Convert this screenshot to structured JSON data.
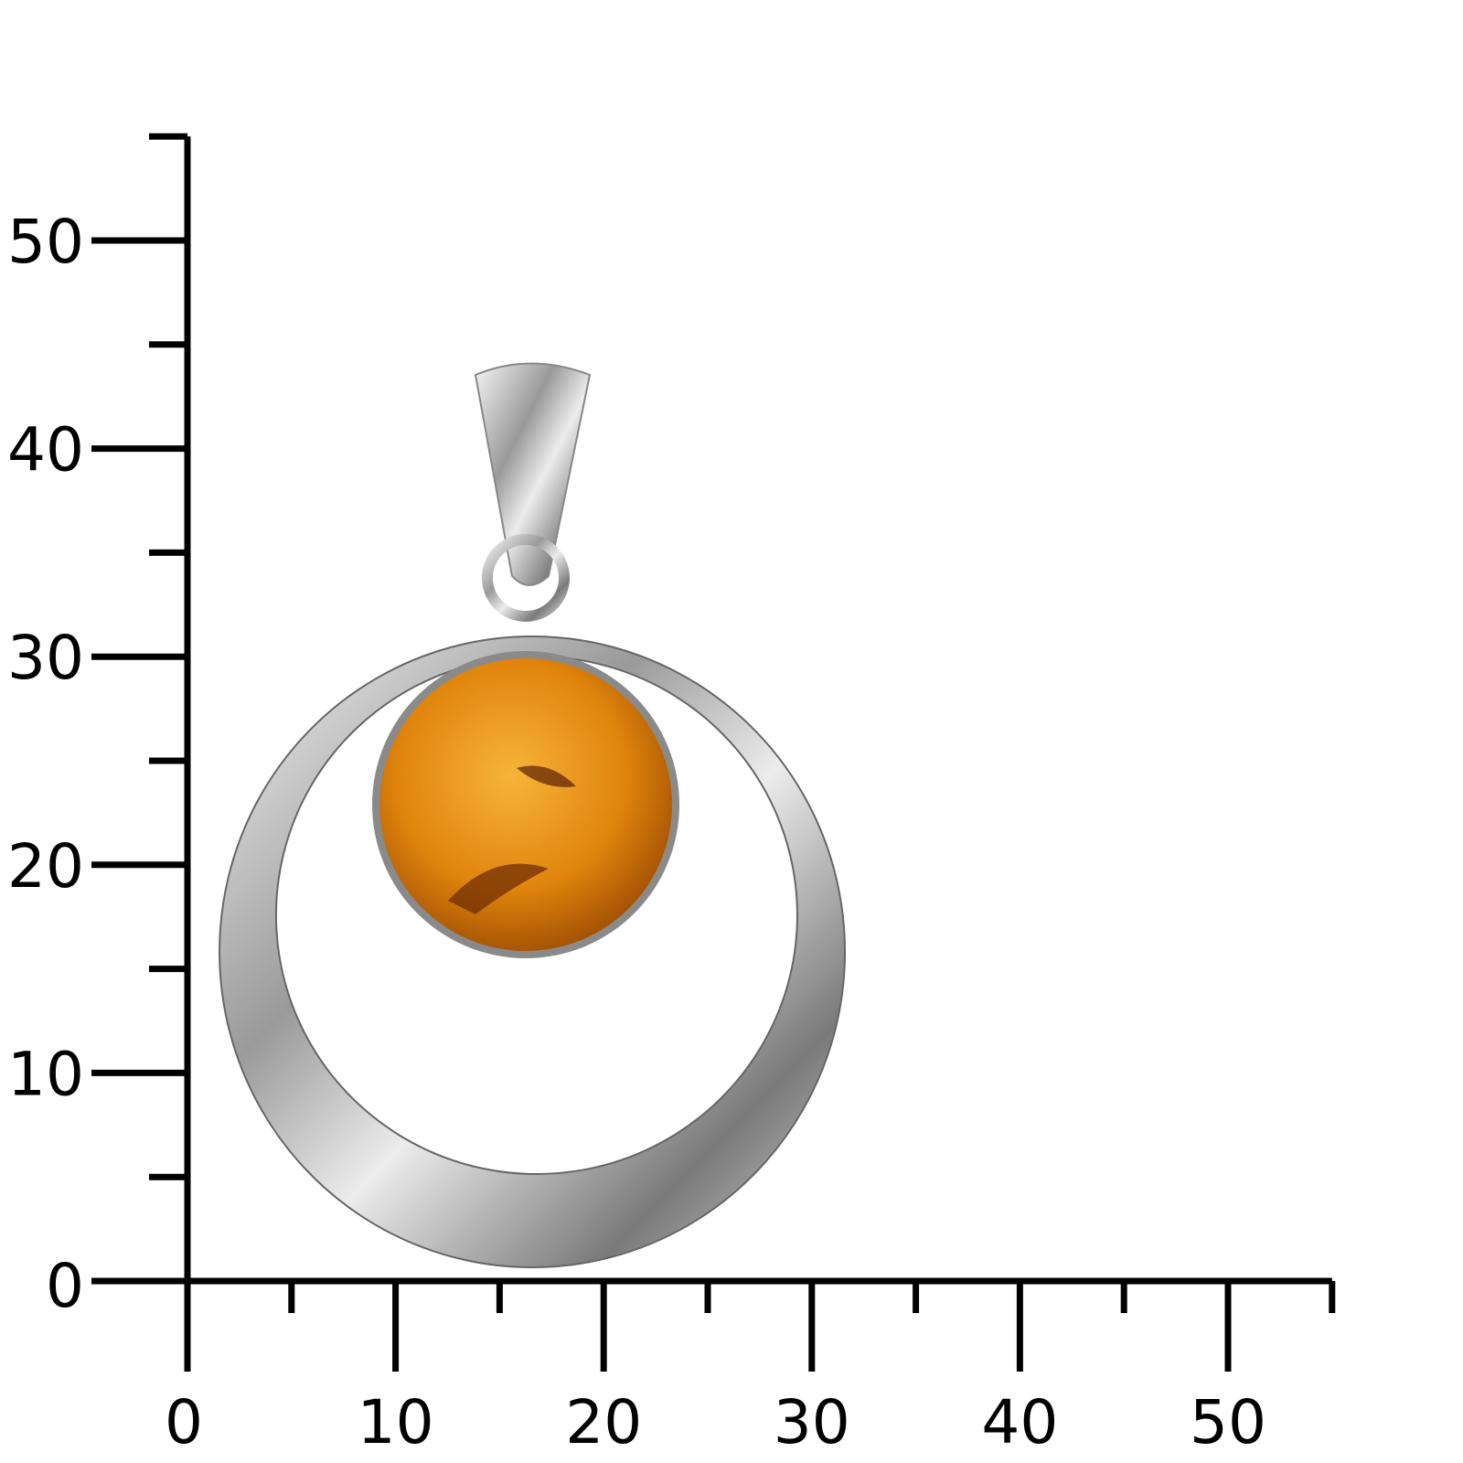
{
  "chart_data": {
    "type": "scale-ruler",
    "x_ticks": [
      "0",
      "10",
      "20",
      "30",
      "40",
      "50"
    ],
    "y_ticks": [
      "0",
      "10",
      "20",
      "30",
      "40",
      "50"
    ],
    "x_range": [
      0,
      55
    ],
    "y_range": [
      0,
      55
    ],
    "minor_step": 5,
    "major_step": 10,
    "grid": false
  },
  "product": {
    "subject": "silver pendant with round amber cabochon",
    "colors": {
      "silver": "#c8c8c8",
      "amber": "#e08a10",
      "axis": "#000000"
    }
  }
}
